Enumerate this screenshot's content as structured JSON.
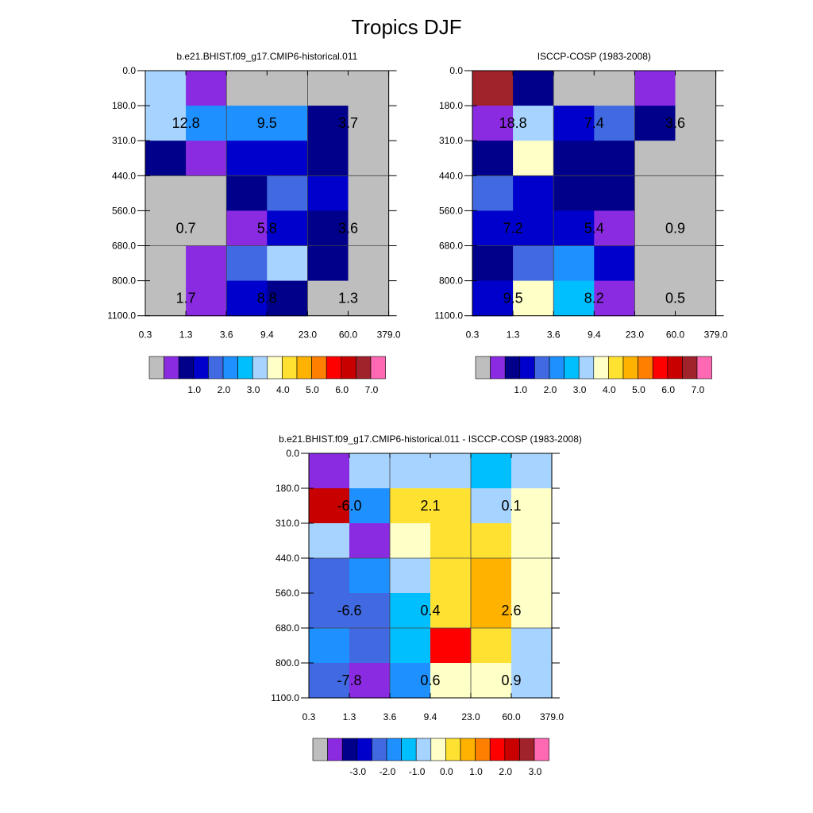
{
  "figure": {
    "title": "Tropics DJF"
  },
  "palettes": {
    "main": [
      "#bebebe",
      "#8a2be2",
      "#00008b",
      "#0000cd",
      "#4169e1",
      "#1e90ff",
      "#00bfff",
      "#a6d3ff",
      "#ffffc8",
      "#ffe132",
      "#ffb300",
      "#ff7f00",
      "#ff0000",
      "#c80000",
      "#a0222a",
      "#ff69b4"
    ],
    "diff": [
      "#bebebe",
      "#8a2be2",
      "#00008b",
      "#0000cd",
      "#4169e1",
      "#1e90ff",
      "#00bfff",
      "#a6d3ff",
      "#ffffc8",
      "#ffe132",
      "#ffb300",
      "#ff7f00",
      "#ff0000",
      "#c80000",
      "#a0222a",
      "#ff69b4"
    ]
  },
  "axes": {
    "x_ticks": [
      "0.3",
      "1.3",
      "3.6",
      "9.4",
      "23.0",
      "60.0",
      "379.0"
    ],
    "y_ticks": [
      "0.0",
      "180.0",
      "310.0",
      "440.0",
      "560.0",
      "680.0",
      "800.0",
      "1100.0"
    ]
  },
  "chart_data": [
    {
      "type": "heatmap",
      "title": "b.e21.BHIST.f09_g17.CMIP6-historical.011",
      "x_edges": [
        "0.3",
        "1.3",
        "3.6",
        "9.4",
        "23.0",
        "60.0",
        "379.0"
      ],
      "y_edges": [
        "0.0",
        "180.0",
        "310.0",
        "440.0",
        "560.0",
        "680.0",
        "800.0",
        "1100.0"
      ],
      "cell_colors": [
        [
          7,
          1,
          0,
          0,
          0,
          0
        ],
        [
          7,
          5,
          5,
          5,
          2,
          0
        ],
        [
          2,
          1,
          3,
          3,
          2,
          0
        ],
        [
          0,
          0,
          2,
          4,
          3,
          0
        ],
        [
          0,
          0,
          1,
          3,
          2,
          0
        ],
        [
          0,
          1,
          4,
          7,
          2,
          0
        ],
        [
          0,
          1,
          3,
          2,
          0,
          0
        ]
      ],
      "labels": [
        {
          "text": "12.8",
          "xi": 0,
          "yi": 1
        },
        {
          "text": "9.5",
          "xi": 2,
          "yi": 1
        },
        {
          "text": "3.7",
          "xi": 4,
          "yi": 1
        },
        {
          "text": "0.7",
          "xi": 0,
          "yi": 4
        },
        {
          "text": "5.8",
          "xi": 2,
          "yi": 4
        },
        {
          "text": "3.6",
          "xi": 4,
          "yi": 4
        },
        {
          "text": "1.7",
          "xi": 0,
          "yi": 6
        },
        {
          "text": "8.8",
          "xi": 2,
          "yi": 6
        },
        {
          "text": "1.3",
          "xi": 4,
          "yi": 6
        }
      ],
      "colorbar": {
        "palette": "main",
        "labels": [
          "1.0",
          "2.0",
          "3.0",
          "4.0",
          "5.0",
          "6.0",
          "7.0"
        ]
      }
    },
    {
      "type": "heatmap",
      "title": "ISCCP-COSP (1983-2008)",
      "x_edges": [
        "0.3",
        "1.3",
        "3.6",
        "9.4",
        "23.0",
        "60.0",
        "379.0"
      ],
      "y_edges": [
        "0.0",
        "180.0",
        "310.0",
        "440.0",
        "560.0",
        "680.0",
        "800.0",
        "1100.0"
      ],
      "cell_colors": [
        [
          14,
          2,
          0,
          0,
          1,
          0
        ],
        [
          1,
          7,
          3,
          4,
          2,
          0
        ],
        [
          2,
          8,
          2,
          2,
          0,
          0
        ],
        [
          4,
          3,
          2,
          2,
          0,
          0
        ],
        [
          3,
          3,
          3,
          1,
          0,
          0
        ],
        [
          2,
          4,
          5,
          3,
          0,
          0
        ],
        [
          3,
          8,
          6,
          1,
          0,
          0
        ]
      ],
      "labels": [
        {
          "text": "18.8",
          "xi": 0,
          "yi": 1
        },
        {
          "text": "7.4",
          "xi": 2,
          "yi": 1
        },
        {
          "text": "3.6",
          "xi": 4,
          "yi": 1
        },
        {
          "text": "7.2",
          "xi": 0,
          "yi": 4
        },
        {
          "text": "5.4",
          "xi": 2,
          "yi": 4
        },
        {
          "text": "0.9",
          "xi": 4,
          "yi": 4
        },
        {
          "text": "9.5",
          "xi": 0,
          "yi": 6
        },
        {
          "text": "8.2",
          "xi": 2,
          "yi": 6
        },
        {
          "text": "0.5",
          "xi": 4,
          "yi": 6
        }
      ],
      "colorbar": {
        "palette": "main",
        "labels": [
          "1.0",
          "2.0",
          "3.0",
          "4.0",
          "5.0",
          "6.0",
          "7.0"
        ]
      }
    },
    {
      "type": "heatmap",
      "title": "b.e21.BHIST.f09_g17.CMIP6-historical.011 - ISCCP-COSP (1983-2008)",
      "x_edges": [
        "0.3",
        "1.3",
        "3.6",
        "9.4",
        "23.0",
        "60.0",
        "379.0"
      ],
      "y_edges": [
        "0.0",
        "180.0",
        "310.0",
        "440.0",
        "560.0",
        "680.0",
        "800.0",
        "1100.0"
      ],
      "cell_colors": [
        [
          1,
          7,
          7,
          7,
          6,
          7
        ],
        [
          13,
          5,
          9,
          9,
          7,
          8
        ],
        [
          7,
          1,
          8,
          9,
          9,
          8
        ],
        [
          4,
          5,
          7,
          9,
          10,
          8
        ],
        [
          4,
          4,
          6,
          9,
          10,
          8
        ],
        [
          5,
          4,
          6,
          12,
          9,
          7
        ],
        [
          4,
          1,
          5,
          8,
          8,
          7
        ]
      ],
      "labels": [
        {
          "text": "-6.0",
          "xi": 0,
          "yi": 1
        },
        {
          "text": "2.1",
          "xi": 2,
          "yi": 1
        },
        {
          "text": "0.1",
          "xi": 4,
          "yi": 1
        },
        {
          "text": "-6.6",
          "xi": 0,
          "yi": 4
        },
        {
          "text": "0.4",
          "xi": 2,
          "yi": 4
        },
        {
          "text": "2.6",
          "xi": 4,
          "yi": 4
        },
        {
          "text": "-7.8",
          "xi": 0,
          "yi": 6
        },
        {
          "text": "0.6",
          "xi": 2,
          "yi": 6
        },
        {
          "text": "0.9",
          "xi": 4,
          "yi": 6
        }
      ],
      "colorbar": {
        "palette": "diff",
        "labels": [
          "-3.0",
          "-2.0",
          "-1.0",
          "0.0",
          "1.0",
          "2.0",
          "3.0"
        ]
      }
    }
  ]
}
